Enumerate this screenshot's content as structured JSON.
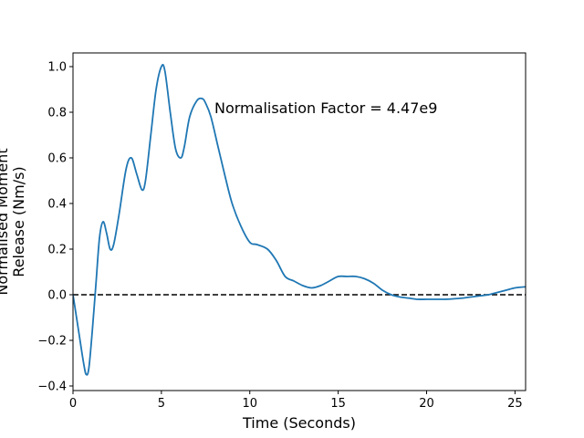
{
  "chart_data": {
    "type": "line",
    "title": "",
    "xlabel": "Time (Seconds)",
    "ylabel_lines": [
      "Normalised Moment",
      "Release (Nm/s)"
    ],
    "xlim": [
      0,
      25.6
    ],
    "ylim": [
      -0.42,
      1.06
    ],
    "x_ticks": [
      0,
      5,
      10,
      15,
      20,
      25
    ],
    "x_tick_labels": [
      "0",
      "5",
      "10",
      "15",
      "20",
      "25"
    ],
    "y_ticks": [
      -0.4,
      -0.2,
      0.0,
      0.2,
      0.4,
      0.6,
      0.8,
      1.0
    ],
    "y_tick_labels": [
      "−0.4",
      "−0.2",
      "0.0",
      "0.2",
      "0.4",
      "0.6",
      "0.8",
      "1.0"
    ],
    "grid": false,
    "annotation": {
      "text": "Normalisation Factor = 4.47e9",
      "x": 8.0,
      "y": 0.82
    },
    "reference_line": {
      "y": 0.0,
      "style": "dashed",
      "color": "#000000"
    },
    "series": [
      {
        "color": "#1f77b4",
        "x": [
          0.0,
          0.3,
          0.6,
          0.75,
          0.9,
          1.1,
          1.3,
          1.5,
          1.7,
          1.9,
          2.1,
          2.3,
          2.6,
          3.0,
          3.3,
          3.6,
          3.9,
          4.1,
          4.4,
          4.7,
          5.0,
          5.2,
          5.5,
          5.8,
          6.1,
          6.3,
          6.6,
          7.0,
          7.3,
          7.5,
          7.8,
          8.2,
          8.6,
          9.0,
          9.5,
          10.0,
          10.4,
          11.0,
          11.5,
          12.0,
          12.5,
          13.0,
          13.5,
          14.0,
          14.5,
          15.0,
          15.5,
          16.0,
          16.5,
          17.0,
          17.5,
          18.0,
          18.5,
          19.0,
          19.5,
          20.0,
          20.5,
          21.0,
          21.5,
          22.0,
          22.5,
          23.0,
          23.5,
          24.0,
          24.5,
          25.0,
          25.6
        ],
        "y": [
          0.0,
          -0.15,
          -0.3,
          -0.35,
          -0.32,
          -0.15,
          0.05,
          0.25,
          0.32,
          0.27,
          0.2,
          0.22,
          0.35,
          0.55,
          0.6,
          0.53,
          0.46,
          0.5,
          0.7,
          0.9,
          1.0,
          0.98,
          0.8,
          0.64,
          0.6,
          0.65,
          0.78,
          0.85,
          0.86,
          0.84,
          0.78,
          0.65,
          0.52,
          0.4,
          0.3,
          0.23,
          0.22,
          0.2,
          0.15,
          0.08,
          0.06,
          0.04,
          0.03,
          0.04,
          0.06,
          0.08,
          0.08,
          0.08,
          0.07,
          0.05,
          0.02,
          0.0,
          -0.01,
          -0.015,
          -0.02,
          -0.02,
          -0.02,
          -0.02,
          -0.018,
          -0.015,
          -0.01,
          -0.005,
          0.0,
          0.01,
          0.02,
          0.03,
          0.035
        ]
      }
    ]
  }
}
